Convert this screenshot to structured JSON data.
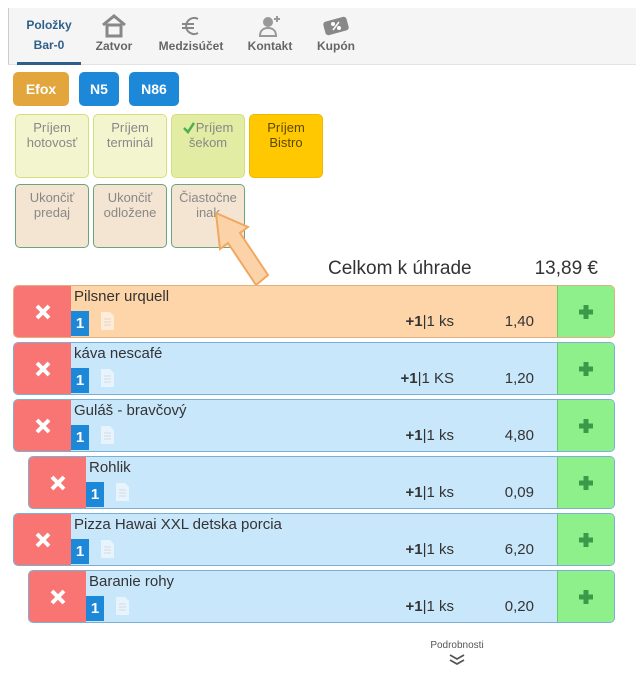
{
  "nav": {
    "tabs": [
      {
        "label1": "Položky",
        "label2": "Bar-0",
        "icon": "none"
      },
      {
        "label": "Zatvor",
        "icon": "house-icon"
      },
      {
        "label": "Medzisúčet",
        "icon": "euro-icon"
      },
      {
        "label": "Kontakt",
        "icon": "add-user-icon"
      },
      {
        "label": "Kupón",
        "icon": "coupon-icon"
      }
    ]
  },
  "chips": [
    {
      "label": "Efox",
      "color": "#e2a63c"
    },
    {
      "label": "N5",
      "color": "#1e88d8"
    },
    {
      "label": "N86",
      "color": "#1e88d8"
    }
  ],
  "payments": [
    {
      "l1": "Príjem",
      "l2": "hotovosť"
    },
    {
      "l1": "Príjem",
      "l2": "terminál"
    },
    {
      "l1": "Príjem",
      "l2": "šekom",
      "checked": true
    },
    {
      "l1": "Príjem",
      "l2": "Bistro",
      "color": "#ffc800"
    }
  ],
  "actions": [
    {
      "l1": "Ukončiť",
      "l2": "predaj"
    },
    {
      "l1": "Ukončiť",
      "l2": "odložene"
    },
    {
      "l1": "Čiastočne",
      "l2": "inak"
    }
  ],
  "total": {
    "label": "Celkom k úhrade",
    "value": "13,89 €"
  },
  "items": [
    {
      "name": "Pilsner urquell",
      "qty": "1",
      "step": "+1",
      "unit": "1 ks",
      "price": "1,40",
      "selected": true
    },
    {
      "name": "káva nescafé",
      "qty": "1",
      "step": "+1",
      "unit": "1 KS",
      "price": "1,20"
    },
    {
      "name": "Guláš - bravčový",
      "qty": "1",
      "step": "+1",
      "unit": "1 ks",
      "price": "4,80"
    },
    {
      "name": "Rohlik",
      "qty": "1",
      "step": "+1",
      "unit": "1 ks",
      "price": "0,09",
      "indent": true
    },
    {
      "name": "Pizza Hawai XXL detska porcia",
      "qty": "1",
      "step": "+1",
      "unit": "1 ks",
      "price": "6,20"
    },
    {
      "name": "Baranie rohy",
      "qty": "1",
      "step": "+1",
      "unit": "1 ks",
      "price": "0,20",
      "indent": true
    }
  ],
  "footer": {
    "label": "Podrobnosti"
  }
}
